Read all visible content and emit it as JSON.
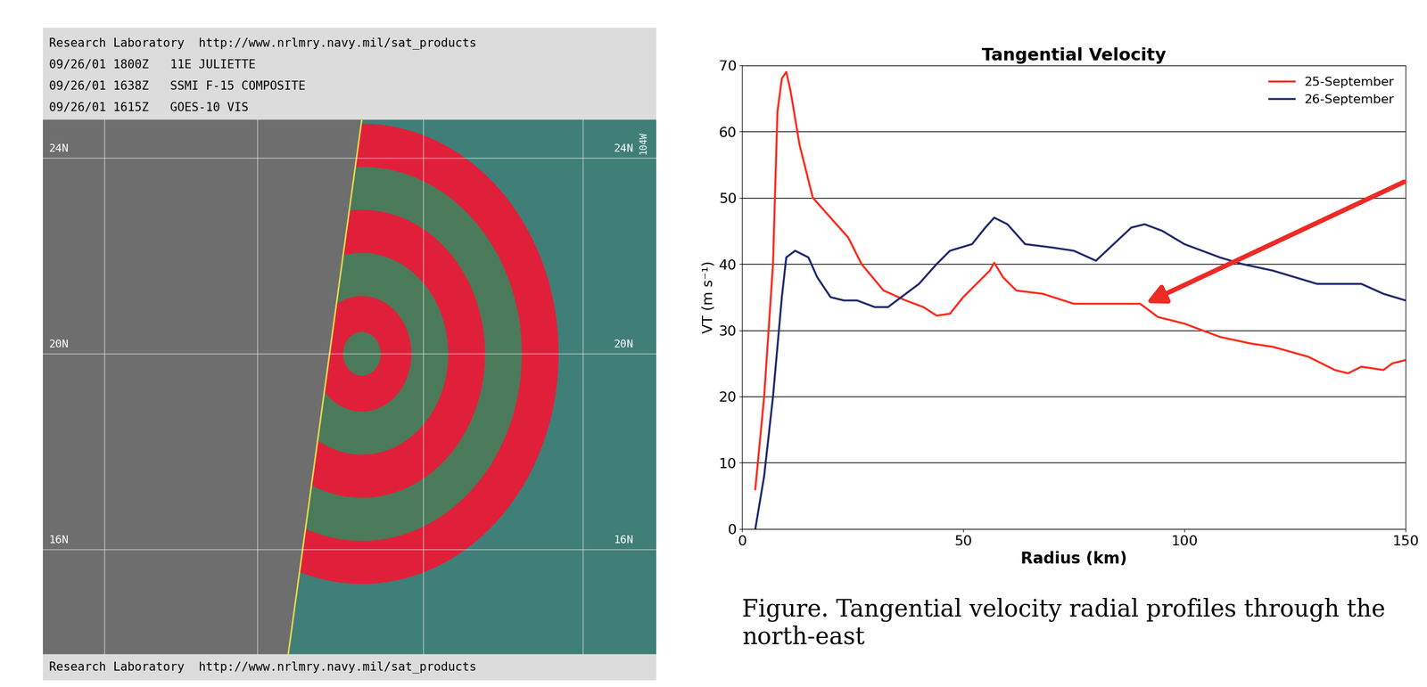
{
  "chart_data": {
    "type": "line",
    "title": "Tangential Velocity",
    "x_label": "Radius (km)",
    "y_label": "VT (m s⁻¹)",
    "xlim": [
      0,
      150
    ],
    "xticks": [
      0,
      50,
      100,
      150
    ],
    "ylim": [
      0,
      70
    ],
    "yticks": [
      0,
      10,
      20,
      30,
      40,
      50,
      60,
      70
    ],
    "grid": true,
    "legend": "upper right",
    "series": [
      {
        "name": "25-September",
        "color": "#ff2a1a",
        "x": [
          3,
          5,
          7,
          8,
          9,
          10,
          11,
          13,
          16,
          20,
          24,
          27,
          32,
          37,
          41,
          44,
          47,
          50,
          53,
          56,
          57,
          59,
          62,
          68,
          75,
          83,
          90,
          94,
          100,
          108,
          115,
          120,
          128,
          134,
          137,
          140,
          145,
          147,
          150
        ],
        "values": [
          6,
          20,
          40,
          63,
          68,
          69,
          66,
          58,
          50,
          47,
          44,
          40,
          36,
          34.5,
          33.5,
          32.2,
          32.5,
          35,
          37,
          39,
          40.2,
          38,
          36,
          35.5,
          34,
          34,
          34,
          32,
          31,
          29,
          28,
          27.5,
          26,
          24,
          23.5,
          24.5,
          24,
          25,
          25.5
        ]
      },
      {
        "name": "26-September",
        "color": "#1f2a6b",
        "x": [
          3,
          5,
          7,
          9,
          10,
          12,
          15,
          17,
          20,
          23,
          26,
          30,
          33,
          36,
          40,
          44,
          47,
          52,
          55,
          57,
          60,
          64,
          70,
          75,
          80,
          84,
          88,
          91,
          95,
          100,
          108,
          113,
          120,
          125,
          130,
          140,
          145,
          150
        ],
        "values": [
          0,
          8,
          20,
          35,
          41,
          42,
          41,
          38,
          35,
          34.5,
          34.5,
          33.5,
          33.5,
          35,
          37,
          40,
          42,
          43,
          45.5,
          47,
          46,
          43,
          42.5,
          42,
          40.5,
          43,
          45.5,
          46,
          45,
          43,
          41,
          40,
          39,
          38,
          37,
          37,
          35.5,
          34.5
        ]
      }
    ],
    "annotations": [
      {
        "x": 91,
        "y": 34
      }
    ]
  },
  "image_panel": {
    "header": [
      "Research Laboratory  http://www.nrlmry.navy.mil/sat_products",
      "09/26/01 1800Z   11E JULIETTE",
      "09/26/01 1638Z   SSMI F-15 COMPOSITE",
      "09/26/01 1615Z   GOES-10 VIS"
    ],
    "latitudes": [
      "24N",
      "20N",
      "16N"
    ],
    "top_right_label": "104W",
    "footer": "Research Laboratory  http://www.nrlmry.navy.mil/sat_products"
  },
  "caption": "Figure. Tangential velocity radial profiles through the north-east"
}
